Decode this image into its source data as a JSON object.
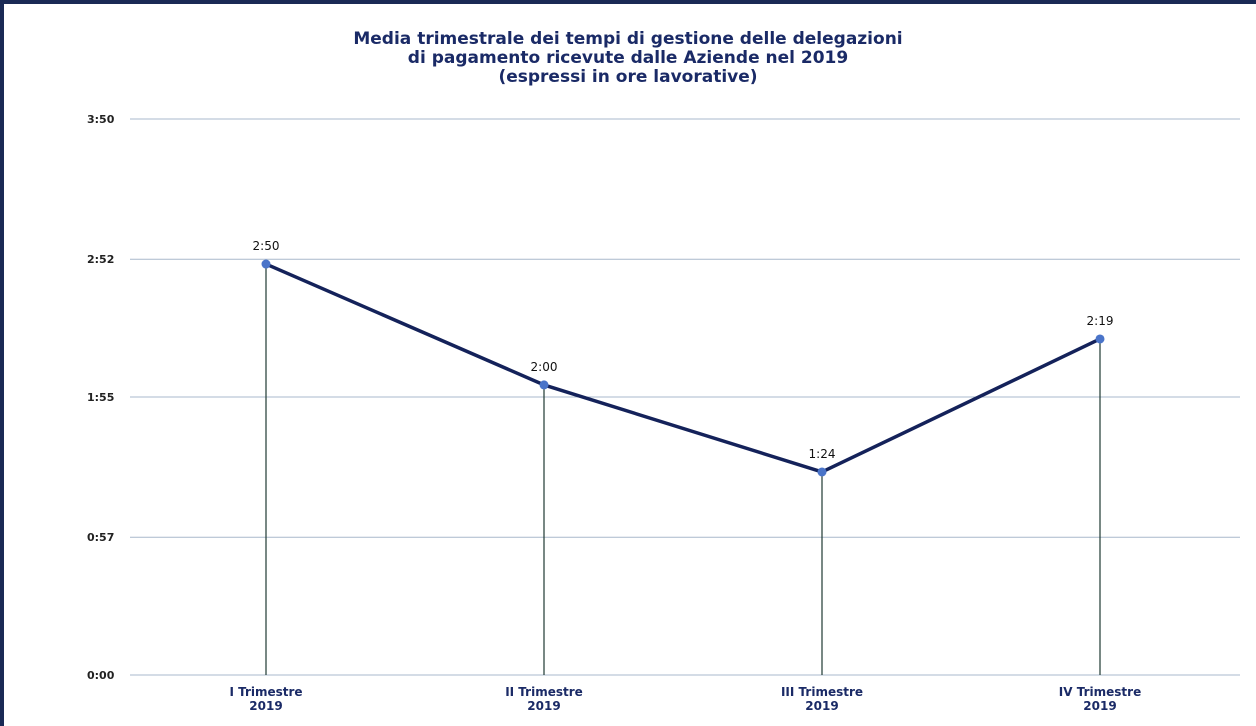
{
  "chart_data": {
    "type": "line",
    "title": [
      "Media trimestrale dei tempi di gestione delle delegazioni",
      "di pagamento ricevute dalle Aziende nel 2019",
      "(espressi in ore lavorative)"
    ],
    "xlabel": "",
    "ylabel": "",
    "categories": [
      [
        "I Trimestre",
        "2019"
      ],
      [
        "II Trimestre",
        "2019"
      ],
      [
        "III Trimestre",
        "2019"
      ],
      [
        "IV Trimestre",
        "2019"
      ]
    ],
    "values_minutes": [
      170,
      120,
      84,
      139
    ],
    "data_labels": [
      "2:50",
      "2:00",
      "1:24",
      "2:19"
    ],
    "yticks_minutes": [
      0,
      57,
      115,
      172,
      230
    ],
    "ytick_labels": [
      "0:00",
      "0:57",
      "1:55",
      "2:52",
      "3:50"
    ],
    "ylim_minutes": [
      0,
      230
    ],
    "grid": true,
    "drop_lines": true,
    "colors": {
      "line": "#14225a",
      "marker": "#4a74c9",
      "grid": "#a9b8cc",
      "drop_line": "#1f3a33",
      "title": "#1a2a66"
    }
  }
}
